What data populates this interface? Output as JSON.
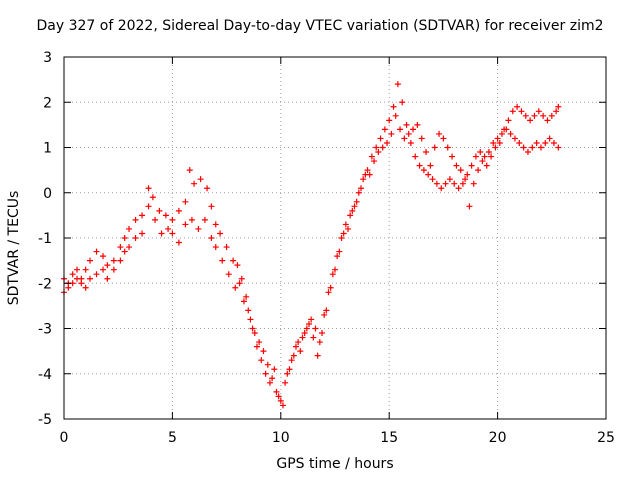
{
  "chart_data": {
    "type": "scatter",
    "title": "Day 327 of 2022, Sidereal Day-to-day VTEC variation (SDTVAR) for receiver zim2",
    "xlabel": "GPS time / hours",
    "ylabel": "SDTVAR / TECUs",
    "xlim": [
      0,
      25
    ],
    "ylim": [
      -5,
      3
    ],
    "xticks": [
      "0",
      "5",
      "10",
      "15",
      "20",
      "25"
    ],
    "yticks": [
      "-5",
      "-4",
      "-3",
      "-2",
      "-1",
      "0",
      "1",
      "2",
      "3"
    ],
    "grid": true,
    "marker": "+",
    "color": "#ff0000",
    "series": [
      {
        "points": [
          [
            0.0,
            -2.2
          ],
          [
            0.2,
            -2.0
          ],
          [
            0.4,
            -1.8
          ],
          [
            0.6,
            -1.7
          ],
          [
            0.8,
            -1.9
          ],
          [
            1.0,
            -1.7
          ],
          [
            1.2,
            -1.5
          ],
          [
            1.5,
            -1.3
          ],
          [
            1.8,
            -1.4
          ],
          [
            2.0,
            -1.6
          ],
          [
            2.3,
            -1.5
          ],
          [
            2.6,
            -1.2
          ],
          [
            2.8,
            -1.0
          ],
          [
            3.0,
            -0.8
          ],
          [
            3.3,
            -0.6
          ],
          [
            3.6,
            -0.5
          ],
          [
            3.9,
            -0.3
          ],
          [
            4.2,
            -0.6
          ],
          [
            4.5,
            -0.9
          ],
          [
            4.8,
            -0.8
          ],
          [
            5.0,
            -0.6
          ],
          [
            5.3,
            -0.4
          ],
          [
            5.6,
            -0.2
          ],
          [
            5.8,
            0.5
          ],
          [
            6.0,
            0.2
          ],
          [
            6.3,
            0.3
          ],
          [
            6.6,
            0.1
          ],
          [
            6.8,
            -0.3
          ],
          [
            7.0,
            -0.7
          ],
          [
            7.2,
            -0.9
          ],
          [
            7.5,
            -1.2
          ],
          [
            7.8,
            -1.5
          ],
          [
            8.0,
            -1.6
          ],
          [
            8.2,
            -1.9
          ],
          [
            8.4,
            -2.3
          ],
          [
            8.6,
            -2.8
          ],
          [
            8.8,
            -3.1
          ],
          [
            9.0,
            -3.3
          ],
          [
            9.2,
            -3.5
          ],
          [
            9.4,
            -3.8
          ],
          [
            9.6,
            -4.1
          ],
          [
            9.8,
            -4.4
          ],
          [
            10.0,
            -4.6
          ],
          [
            10.2,
            -4.2
          ],
          [
            10.4,
            -3.9
          ],
          [
            10.6,
            -3.6
          ],
          [
            10.8,
            -3.3
          ],
          [
            11.0,
            -3.2
          ],
          [
            11.2,
            -3.0
          ],
          [
            11.4,
            -2.8
          ],
          [
            11.6,
            -3.0
          ],
          [
            11.8,
            -3.3
          ],
          [
            12.0,
            -2.7
          ],
          [
            12.2,
            -2.2
          ],
          [
            12.4,
            -1.8
          ],
          [
            12.6,
            -1.4
          ],
          [
            12.8,
            -1.0
          ],
          [
            13.0,
            -0.7
          ],
          [
            13.2,
            -0.5
          ],
          [
            13.4,
            -0.3
          ],
          [
            13.6,
            0.0
          ],
          [
            13.8,
            0.3
          ],
          [
            14.0,
            0.5
          ],
          [
            14.2,
            0.8
          ],
          [
            14.4,
            1.0
          ],
          [
            14.6,
            1.2
          ],
          [
            14.8,
            1.4
          ],
          [
            15.0,
            1.6
          ],
          [
            15.2,
            1.9
          ],
          [
            15.4,
            2.4
          ],
          [
            15.6,
            2.0
          ],
          [
            15.8,
            1.5
          ],
          [
            16.0,
            1.1
          ],
          [
            16.2,
            0.8
          ],
          [
            16.4,
            0.6
          ],
          [
            16.6,
            0.5
          ],
          [
            16.8,
            0.4
          ],
          [
            17.0,
            0.3
          ],
          [
            17.2,
            0.2
          ],
          [
            17.4,
            0.1
          ],
          [
            17.6,
            0.2
          ],
          [
            17.8,
            0.3
          ],
          [
            18.0,
            0.2
          ],
          [
            18.2,
            0.1
          ],
          [
            18.4,
            0.2
          ],
          [
            18.6,
            0.4
          ],
          [
            18.8,
            0.6
          ],
          [
            19.0,
            0.8
          ],
          [
            19.2,
            0.9
          ],
          [
            19.4,
            0.8
          ],
          [
            19.6,
            0.9
          ],
          [
            19.8,
            1.1
          ],
          [
            20.0,
            1.2
          ],
          [
            20.2,
            1.3
          ],
          [
            20.4,
            1.4
          ],
          [
            20.6,
            1.3
          ],
          [
            20.8,
            1.2
          ],
          [
            21.0,
            1.1
          ],
          [
            21.2,
            1.0
          ],
          [
            21.4,
            0.9
          ],
          [
            21.6,
            1.0
          ],
          [
            21.8,
            1.1
          ],
          [
            22.0,
            1.0
          ],
          [
            22.2,
            1.1
          ],
          [
            22.4,
            1.2
          ],
          [
            22.6,
            1.1
          ],
          [
            22.8,
            1.0
          ]
        ]
      },
      {
        "points": [
          [
            0.0,
            -1.9
          ],
          [
            0.2,
            -2.1
          ],
          [
            0.4,
            -2.0
          ],
          [
            0.6,
            -1.9
          ],
          [
            0.8,
            -2.0
          ],
          [
            1.0,
            -2.1
          ],
          [
            1.2,
            -1.9
          ],
          [
            1.5,
            -1.8
          ],
          [
            1.8,
            -1.7
          ],
          [
            2.0,
            -1.9
          ],
          [
            2.3,
            -1.7
          ],
          [
            2.6,
            -1.5
          ],
          [
            2.8,
            -1.3
          ],
          [
            3.0,
            -1.2
          ],
          [
            3.3,
            -1.0
          ],
          [
            3.6,
            -0.9
          ],
          [
            3.9,
            0.1
          ],
          [
            4.1,
            -0.1
          ],
          [
            4.4,
            -0.4
          ],
          [
            4.7,
            -0.5
          ],
          [
            5.0,
            -0.9
          ],
          [
            5.3,
            -1.1
          ],
          [
            5.6,
            -0.7
          ],
          [
            5.9,
            -0.6
          ],
          [
            6.2,
            -0.8
          ],
          [
            6.5,
            -0.6
          ],
          [
            6.8,
            -1.0
          ],
          [
            7.0,
            -1.2
          ],
          [
            7.3,
            -1.5
          ],
          [
            7.6,
            -1.8
          ],
          [
            7.9,
            -2.1
          ],
          [
            8.1,
            -2.0
          ],
          [
            8.3,
            -2.4
          ],
          [
            8.5,
            -2.6
          ],
          [
            8.7,
            -3.0
          ],
          [
            8.9,
            -3.4
          ],
          [
            9.1,
            -3.7
          ],
          [
            9.3,
            -4.0
          ],
          [
            9.5,
            -4.2
          ],
          [
            9.7,
            -3.9
          ],
          [
            9.9,
            -4.5
          ],
          [
            10.1,
            -4.7
          ],
          [
            10.3,
            -4.0
          ],
          [
            10.5,
            -3.7
          ],
          [
            10.7,
            -3.4
          ],
          [
            10.9,
            -3.5
          ],
          [
            11.1,
            -3.1
          ],
          [
            11.3,
            -2.9
          ],
          [
            11.5,
            -3.2
          ],
          [
            11.7,
            -3.6
          ],
          [
            11.9,
            -3.1
          ],
          [
            12.1,
            -2.6
          ],
          [
            12.3,
            -2.1
          ],
          [
            12.5,
            -1.7
          ],
          [
            12.7,
            -1.3
          ],
          [
            12.9,
            -0.9
          ],
          [
            13.1,
            -0.8
          ],
          [
            13.3,
            -0.4
          ],
          [
            13.5,
            -0.2
          ],
          [
            13.7,
            0.1
          ],
          [
            13.9,
            0.4
          ],
          [
            14.1,
            0.4
          ],
          [
            14.3,
            0.7
          ],
          [
            14.5,
            0.9
          ],
          [
            14.7,
            1.0
          ],
          [
            14.9,
            1.1
          ],
          [
            15.1,
            1.3
          ],
          [
            15.3,
            1.7
          ],
          [
            15.5,
            1.4
          ],
          [
            15.7,
            1.2
          ],
          [
            15.9,
            1.3
          ],
          [
            16.1,
            1.4
          ],
          [
            16.3,
            1.5
          ],
          [
            16.5,
            1.2
          ],
          [
            16.7,
            0.9
          ],
          [
            16.9,
            0.6
          ],
          [
            17.1,
            1.0
          ],
          [
            17.3,
            1.3
          ],
          [
            17.5,
            1.2
          ],
          [
            17.7,
            1.0
          ],
          [
            17.9,
            0.8
          ],
          [
            18.1,
            0.6
          ],
          [
            18.3,
            0.5
          ],
          [
            18.5,
            0.3
          ],
          [
            18.7,
            -0.3
          ],
          [
            18.9,
            0.2
          ],
          [
            19.1,
            0.5
          ],
          [
            19.3,
            0.7
          ],
          [
            19.5,
            0.6
          ],
          [
            19.7,
            0.8
          ],
          [
            19.9,
            1.0
          ],
          [
            20.1,
            1.1
          ],
          [
            20.3,
            1.4
          ],
          [
            20.5,
            1.6
          ],
          [
            20.7,
            1.8
          ],
          [
            20.9,
            1.9
          ],
          [
            21.1,
            1.8
          ],
          [
            21.3,
            1.7
          ],
          [
            21.5,
            1.6
          ],
          [
            21.7,
            1.7
          ],
          [
            21.9,
            1.8
          ],
          [
            22.1,
            1.7
          ],
          [
            22.3,
            1.6
          ],
          [
            22.5,
            1.7
          ],
          [
            22.7,
            1.8
          ],
          [
            22.8,
            1.9
          ]
        ]
      }
    ]
  }
}
